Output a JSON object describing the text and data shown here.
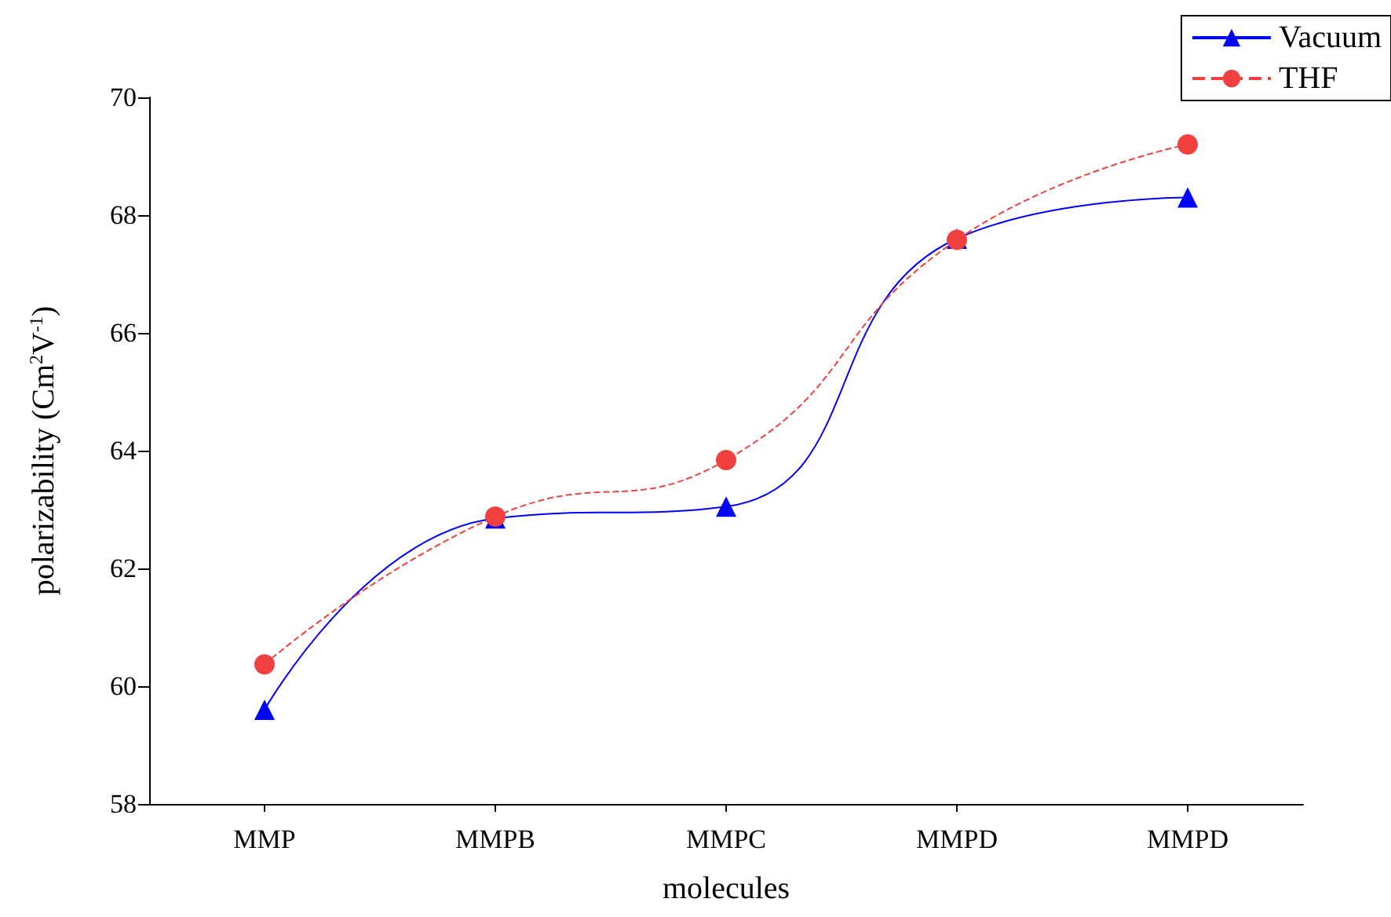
{
  "chart_data": {
    "type": "line",
    "xlabel": "molecules",
    "ylabel": "polarizability (Cm$^{2}$V$^{-1}$)",
    "categories": [
      "MMP",
      "MMPB",
      "MMPC",
      "MMPD",
      "MMPD"
    ],
    "series": [
      {
        "name": "Vacuum",
        "color": "#0000ff",
        "marker": "triangle",
        "line_style": "solid",
        "values": [
          59.6,
          62.85,
          63.05,
          67.6,
          68.3
        ]
      },
      {
        "name": "THF",
        "color": "#f04040",
        "marker": "circle",
        "line_style": "dashed",
        "values": [
          60.37,
          62.88,
          63.84,
          67.58,
          69.2
        ]
      }
    ],
    "ylim": [
      58,
      70
    ],
    "yticks": [
      58,
      60,
      62,
      64,
      66,
      68,
      70
    ],
    "grid": false,
    "legend": "top right"
  }
}
